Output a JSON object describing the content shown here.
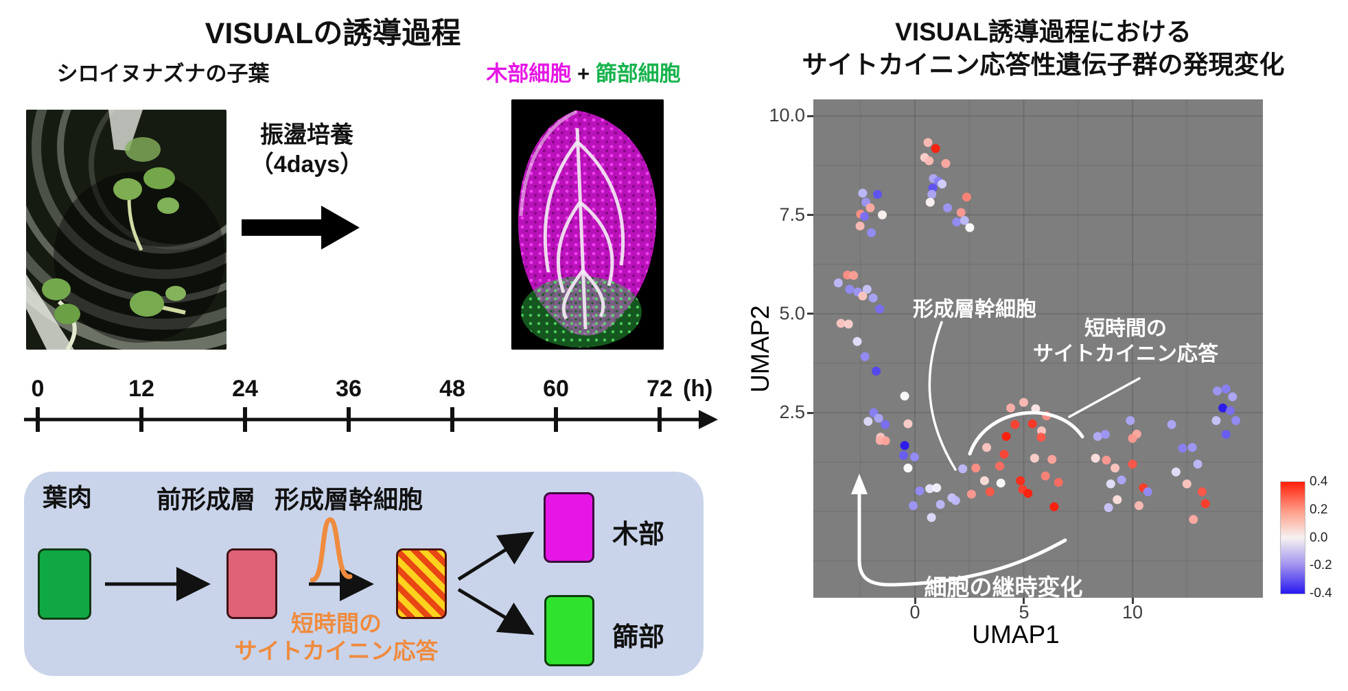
{
  "figure": {
    "left": {
      "title": "VISUALの誘導過程",
      "photo_label": "シロイヌナズナの子葉",
      "result_label": {
        "xylem": "木部細胞",
        "plus": " + ",
        "phloem": "篩部細胞"
      },
      "arrow_label": {
        "line1": "振盪培養",
        "line2": "（4days）"
      },
      "timeline": {
        "ticks": [
          "0",
          "12",
          "24",
          "36",
          "48",
          "60",
          "72"
        ],
        "unit": "(h)"
      },
      "panel": {
        "mesophyll": "葉肉",
        "procambium": "前形成層",
        "cambium_stem_cell": "形成層幹細胞",
        "xylem": "木部",
        "phloem": "篩部",
        "orange_note": {
          "line1": "短時間の",
          "line2": "サイトカイニン応答"
        }
      }
    },
    "right": {
      "title_line1": "VISUAL誘導過程における",
      "title_line2": "サイトカイニン応答性遺伝子群の発現変化",
      "annotations": {
        "stem": "形成層幹細胞",
        "short_line1": "短時間の",
        "short_line2": "サイトカイニン応答",
        "trajectory": "細胞の継時変化"
      }
    }
  },
  "colors": {
    "magenta": "#e616e6",
    "green_label": "#17b34d",
    "mesophyll_green": "#0fa845",
    "phloem_box_green": "#2ee22e",
    "procambium_pink": "#e06277",
    "stripe_yellow": "#ffd21e",
    "stripe_red": "#e84614",
    "orange": "#ef8b3f",
    "panel_blue": "#c9d4ea",
    "plot_gray": "#7e7e7e",
    "hot": "#ff1e0a",
    "cold": "#2818f0"
  },
  "chart_data": {
    "type": "scatter",
    "title": "VISUAL誘導過程におけるサイトカイニン応答性遺伝子群の発現変化",
    "xlabel": "UMAP1",
    "ylabel": "UMAP2",
    "x_ticks": [
      "0",
      "5",
      "10"
    ],
    "x_tick_values": [
      0,
      5,
      10
    ],
    "y_ticks": [
      "10.0",
      "7.5",
      "5.0",
      "2.5"
    ],
    "y_tick_values": [
      10.0,
      7.5,
      5.0,
      2.5
    ],
    "xlim": [
      -4.7,
      16.0
    ],
    "ylim": [
      -2.2,
      10.4
    ],
    "grid": true,
    "legend_position": "right-colorbar",
    "colorbar": {
      "ticks": [
        "0.4",
        "0.2",
        "0.0",
        "-0.2",
        "-0.4"
      ],
      "range": [
        -0.4,
        0.4
      ]
    },
    "series_note": "points are [UMAP1, UMAP2, cytokinin-response-score]",
    "points": [
      [
        0.6,
        9.33,
        0.12
      ],
      [
        0.95,
        9.18,
        0.4
      ],
      [
        0.45,
        8.95,
        0.08
      ],
      [
        0.65,
        8.87,
        0.12
      ],
      [
        1.42,
        8.8,
        0.15
      ],
      [
        0.85,
        8.42,
        -0.15
      ],
      [
        1.08,
        8.35,
        -0.22
      ],
      [
        1.25,
        8.28,
        -0.08
      ],
      [
        0.82,
        8.18,
        -0.3
      ],
      [
        0.78,
        8.02,
        -0.15
      ],
      [
        0.7,
        7.82,
        0.02
      ],
      [
        1.5,
        7.68,
        -0.18
      ],
      [
        2.38,
        7.95,
        0.22
      ],
      [
        2.12,
        7.56,
        0.18
      ],
      [
        1.92,
        7.32,
        -0.2
      ],
      [
        2.28,
        7.36,
        -0.12
      ],
      [
        2.52,
        7.18,
        0.0
      ],
      [
        -2.4,
        8.05,
        -0.12
      ],
      [
        -1.72,
        8.02,
        -0.3
      ],
      [
        -2.25,
        7.82,
        -0.18
      ],
      [
        -2.05,
        7.68,
        0.15
      ],
      [
        -2.5,
        7.52,
        0.2
      ],
      [
        -2.32,
        7.46,
        -0.25
      ],
      [
        -1.5,
        7.5,
        0.02
      ],
      [
        -2.52,
        7.22,
        0.12
      ],
      [
        -2.0,
        7.05,
        -0.2
      ],
      [
        -3.1,
        5.98,
        0.2
      ],
      [
        -2.82,
        5.97,
        0.17
      ],
      [
        -3.52,
        5.78,
        -0.12
      ],
      [
        -3.0,
        5.62,
        -0.2
      ],
      [
        -2.62,
        5.55,
        -0.18
      ],
      [
        -2.2,
        5.62,
        -0.1
      ],
      [
        -2.4,
        5.45,
        0.1
      ],
      [
        -1.92,
        5.4,
        -0.16
      ],
      [
        -1.62,
        5.12,
        -0.25
      ],
      [
        -3.4,
        4.76,
        0.1
      ],
      [
        -3.05,
        4.74,
        0.08
      ],
      [
        -2.65,
        4.3,
        -0.05
      ],
      [
        -2.3,
        3.92,
        -0.2
      ],
      [
        -1.78,
        3.55,
        -0.32
      ],
      [
        -0.47,
        2.92,
        0.0
      ],
      [
        -1.9,
        2.5,
        -0.22
      ],
      [
        -2.15,
        2.28,
        -0.06
      ],
      [
        -1.67,
        2.36,
        -0.15
      ],
      [
        -1.37,
        2.2,
        -0.25
      ],
      [
        -1.58,
        1.88,
        0.1
      ],
      [
        -0.32,
        2.22,
        0.08
      ],
      [
        -1.6,
        1.8,
        0.14
      ],
      [
        -1.35,
        1.79,
        0.16
      ],
      [
        -0.47,
        1.67,
        -0.4
      ],
      [
        -0.52,
        1.42,
        -0.28
      ],
      [
        -0.02,
        1.38,
        -0.2
      ],
      [
        -0.32,
        1.1,
        0.0
      ],
      [
        0.22,
        0.52,
        -0.2
      ],
      [
        0.68,
        0.58,
        -0.04
      ],
      [
        1.0,
        0.6,
        -0.02
      ],
      [
        -0.08,
        0.15,
        -0.18
      ],
      [
        1.17,
        0.18,
        -0.12
      ],
      [
        0.76,
        -0.15,
        -0.06
      ],
      [
        1.7,
        0.35,
        -0.1
      ],
      [
        1.87,
        0.28,
        -0.12
      ],
      [
        2.2,
        1.08,
        -0.12
      ],
      [
        2.8,
        1.1,
        0.2
      ],
      [
        2.6,
        0.44,
        0.18
      ],
      [
        3.2,
        0.78,
        0.06
      ],
      [
        3.45,
        0.5,
        0.3
      ],
      [
        3.9,
        1.15,
        0.26
      ],
      [
        3.95,
        0.72,
        0.0
      ],
      [
        3.3,
        1.62,
        0.1
      ],
      [
        4.2,
        1.9,
        0.4
      ],
      [
        4.6,
        2.2,
        0.34
      ],
      [
        5.4,
        2.22,
        0.36
      ],
      [
        5.82,
        2.04,
        0.1
      ],
      [
        5.8,
        1.88,
        0.3
      ],
      [
        4.1,
        1.45,
        0.33
      ],
      [
        4.85,
        0.78,
        0.38
      ],
      [
        4.95,
        0.56,
        0.35
      ],
      [
        5.2,
        0.46,
        0.4
      ],
      [
        4.4,
        2.62,
        0.14
      ],
      [
        5.0,
        2.76,
        0.12
      ],
      [
        5.55,
        2.6,
        0.04
      ],
      [
        6.05,
        2.42,
        0.2
      ],
      [
        6.3,
        1.32,
        0.16
      ],
      [
        6.6,
        0.74,
        0.26
      ],
      [
        6.4,
        0.12,
        0.4
      ],
      [
        5.5,
        1.35,
        0.08
      ],
      [
        6.0,
        0.9,
        0.22
      ],
      [
        8.4,
        1.9,
        -0.14
      ],
      [
        8.75,
        1.95,
        -0.18
      ],
      [
        8.3,
        1.35,
        0.05
      ],
      [
        8.8,
        1.3,
        0.18
      ],
      [
        9.2,
        1.1,
        0.1
      ],
      [
        9.0,
        0.7,
        -0.05
      ],
      [
        9.5,
        0.8,
        -0.15
      ],
      [
        9.3,
        0.3,
        0.05
      ],
      [
        8.9,
        0.1,
        -0.1
      ],
      [
        9.9,
        2.3,
        -0.15
      ],
      [
        10.2,
        1.96,
        0.15
      ],
      [
        10.0,
        1.85,
        0.18
      ],
      [
        10.0,
        1.2,
        0.3
      ],
      [
        10.5,
        0.6,
        0.35
      ],
      [
        10.3,
        0.15,
        0.12
      ],
      [
        10.7,
        0.5,
        -0.2
      ],
      [
        11.8,
        2.2,
        -0.15
      ],
      [
        12.3,
        1.6,
        -0.22
      ],
      [
        12.75,
        1.62,
        -0.18
      ],
      [
        12.0,
        1.0,
        -0.05
      ],
      [
        12.5,
        0.7,
        0.1
      ],
      [
        13.0,
        1.2,
        -0.12
      ],
      [
        13.2,
        0.5,
        0.3
      ],
      [
        13.35,
        0.2,
        0.35
      ],
      [
        12.8,
        -0.2,
        0.15
      ],
      [
        13.9,
        3.05,
        -0.18
      ],
      [
        14.3,
        3.1,
        -0.22
      ],
      [
        14.6,
        2.9,
        -0.15
      ],
      [
        14.15,
        2.62,
        -0.4
      ],
      [
        14.5,
        2.55,
        -0.25
      ],
      [
        13.85,
        2.3,
        -0.1
      ],
      [
        14.75,
        2.3,
        -0.2
      ],
      [
        14.3,
        1.95,
        -0.28
      ]
    ]
  }
}
